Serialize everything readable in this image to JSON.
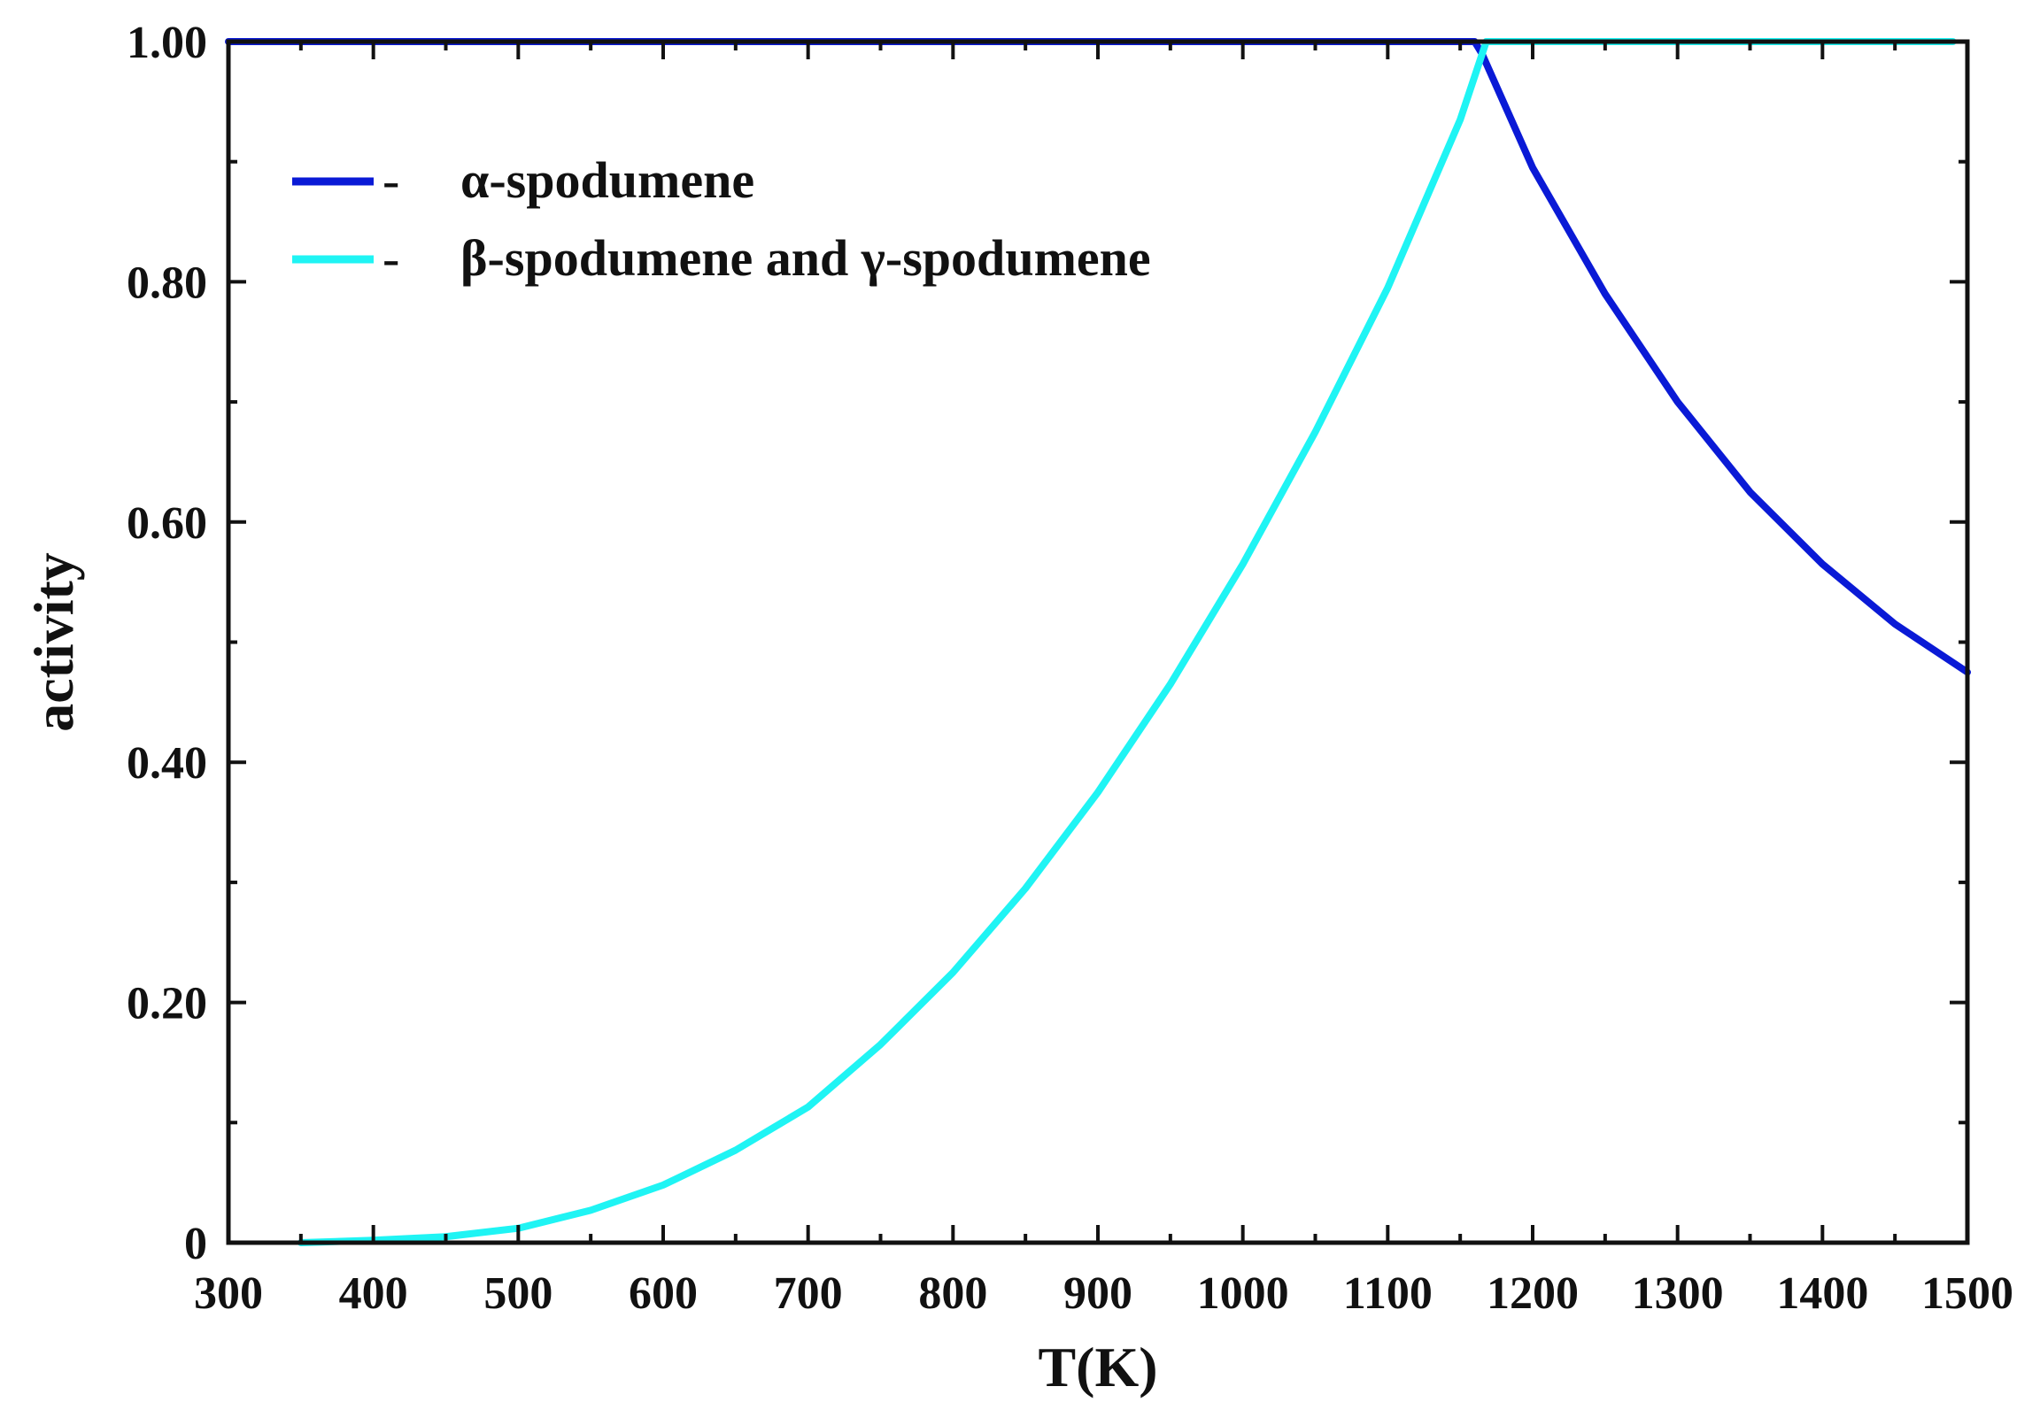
{
  "chart_data": {
    "type": "line",
    "xlabel": "T(K)",
    "ylabel": "activity",
    "xlim": [
      300,
      1500
    ],
    "ylim": [
      0,
      1
    ],
    "x_ticks": [
      300,
      400,
      500,
      600,
      700,
      800,
      900,
      1000,
      1100,
      1200,
      1300,
      1400,
      1500
    ],
    "x_tick_labels": [
      "300",
      "400",
      "500",
      "600",
      "700",
      "800",
      "900",
      "1000",
      "1100",
      "1200",
      "1300",
      "1400",
      "1500"
    ],
    "y_ticks": [
      0,
      0.2,
      0.4,
      0.6,
      0.8,
      1.0
    ],
    "y_tick_labels": [
      "0",
      "0.20",
      "0.40",
      "0.60",
      "0.80",
      "1.00"
    ],
    "grid": false,
    "legend_position": "top-left",
    "legend_marker": "-",
    "series": [
      {
        "name": "α-spodumene",
        "color": "#0a1ad6",
        "x": [
          300,
          400,
          500,
          600,
          700,
          800,
          900,
          1000,
          1100,
          1160,
          1165,
          1200,
          1250,
          1300,
          1350,
          1400,
          1450,
          1500
        ],
        "y": [
          1.0,
          1.0,
          1.0,
          1.0,
          1.0,
          1.0,
          1.0,
          1.0,
          1.0,
          1.0,
          0.99,
          0.895,
          0.79,
          0.7,
          0.625,
          0.565,
          0.515,
          0.475
        ]
      },
      {
        "name": "β-spodumene and γ-spodumene",
        "color": "#1ff4f4",
        "x": [
          350,
          400,
          450,
          500,
          550,
          600,
          650,
          700,
          750,
          800,
          850,
          900,
          950,
          1000,
          1050,
          1100,
          1150,
          1168,
          1200,
          1300,
          1400,
          1490
        ],
        "y": [
          0.0,
          0.002,
          0.005,
          0.012,
          0.027,
          0.048,
          0.077,
          0.113,
          0.165,
          0.225,
          0.295,
          0.375,
          0.465,
          0.565,
          0.675,
          0.795,
          0.935,
          1.0,
          1.0,
          1.0,
          1.0,
          1.0
        ]
      }
    ]
  }
}
